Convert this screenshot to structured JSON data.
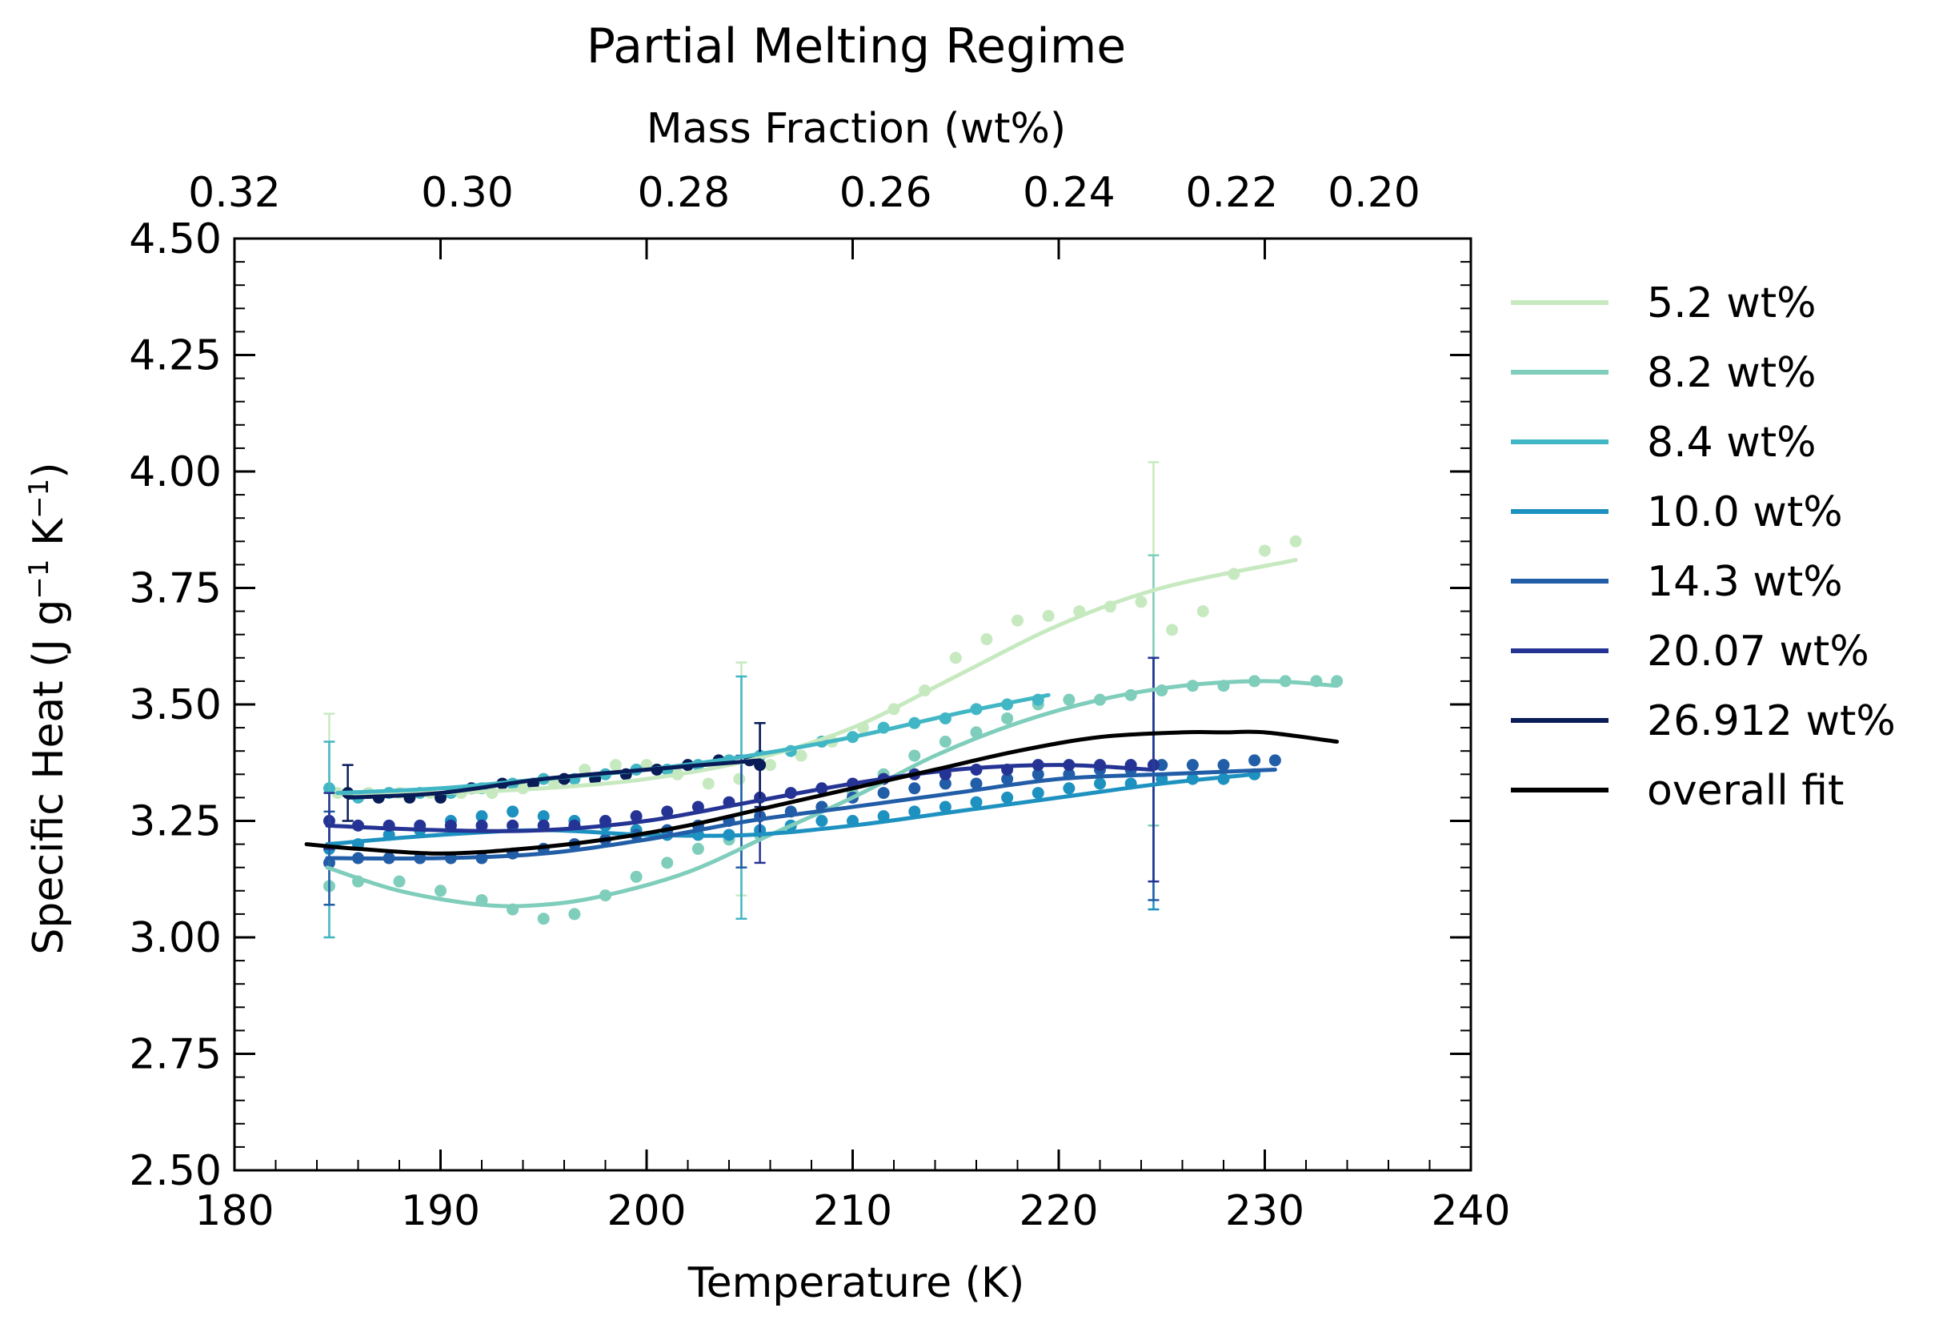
{
  "chart_data": {
    "type": "line",
    "title": "Partial Melting Regime",
    "xlabel": "Temperature (K)",
    "ylabel": "Specific Heat (J g",
    "ylabel_sup1": "−1",
    "ylabel_mid": " K",
    "ylabel_sup2": "−1",
    "ylabel_end": ")",
    "top_xlabel": "Mass Fraction (wt%)",
    "xlim": [
      180,
      240
    ],
    "ylim": [
      2.5,
      4.5
    ],
    "x_ticks": [
      180,
      190,
      200,
      210,
      220,
      230,
      240
    ],
    "y_ticks": [
      2.5,
      2.75,
      3.0,
      3.25,
      3.5,
      3.75,
      4.0,
      4.25,
      4.5
    ],
    "x_tick_labels": [
      "180",
      "190",
      "200",
      "210",
      "220",
      "230",
      "240"
    ],
    "y_tick_labels": [
      "2.50",
      "2.75",
      "3.00",
      "3.25",
      "3.50",
      "3.75",
      "4.00",
      "4.25",
      "4.50"
    ],
    "top_ticks": [
      {
        "label": "0.32",
        "at_temperature": 180
      },
      {
        "label": "0.30",
        "at_temperature": 191.3
      },
      {
        "label": "0.28",
        "at_temperature": 201.8
      },
      {
        "label": "0.26",
        "at_temperature": 211.6
      },
      {
        "label": "0.24",
        "at_temperature": 220.5
      },
      {
        "label": "0.22",
        "at_temperature": 228.4
      },
      {
        "label": "0.20",
        "at_temperature": 235.3
      }
    ],
    "grid": false,
    "legend_position": "outside-right",
    "series": [
      {
        "name": "5.2 wt%",
        "color": "#c7e9c0",
        "fit": {
          "x": [
            185,
            190,
            195,
            200,
            205,
            210,
            215,
            220,
            225,
            231.5
          ],
          "y": [
            3.31,
            3.31,
            3.32,
            3.34,
            3.38,
            3.45,
            3.56,
            3.67,
            3.75,
            3.81
          ]
        },
        "points": {
          "x": [
            185,
            186.5,
            188,
            189.5,
            191,
            192.5,
            194,
            195.5,
            197,
            198.5,
            200,
            201.5,
            203,
            204.5,
            206,
            207.5,
            209,
            210.5,
            212,
            213.5,
            215,
            216.5,
            218,
            219.5,
            221,
            222.5,
            224,
            225.5,
            227,
            228.5,
            230,
            231.5
          ],
          "y": [
            3.31,
            3.31,
            3.31,
            3.31,
            3.31,
            3.31,
            3.32,
            3.33,
            3.36,
            3.37,
            3.37,
            3.35,
            3.33,
            3.34,
            3.37,
            3.39,
            3.42,
            3.45,
            3.49,
            3.53,
            3.6,
            3.64,
            3.68,
            3.69,
            3.7,
            3.71,
            3.72,
            3.66,
            3.7,
            3.78,
            3.83,
            3.85
          ]
        },
        "errorbars": [
          {
            "x": 184.6,
            "y": 3.24,
            "err": 0.24
          },
          {
            "x": 204.6,
            "y": 3.34,
            "err": 0.25
          },
          {
            "x": 224.6,
            "y": 3.73,
            "err": 0.29
          }
        ]
      },
      {
        "name": "8.2 wt%",
        "color": "#7fcdbb",
        "fit": {
          "x": [
            184.5,
            188,
            192,
            195,
            198,
            202,
            206,
            210,
            214,
            218,
            222,
            226,
            230,
            233.5
          ],
          "y": [
            3.15,
            3.1,
            3.07,
            3.07,
            3.09,
            3.14,
            3.22,
            3.3,
            3.39,
            3.46,
            3.51,
            3.54,
            3.55,
            3.54
          ]
        },
        "points": {
          "x": [
            184.6,
            186,
            188,
            190,
            192,
            193.5,
            195,
            196.5,
            198,
            199.5,
            201,
            202.5,
            204,
            205.5,
            207,
            208.5,
            210,
            211.5,
            213,
            214.5,
            216,
            217.5,
            219,
            220.5,
            222,
            223.5,
            225,
            226.5,
            228,
            229.5,
            231,
            232.5,
            233.5
          ],
          "y": [
            3.11,
            3.12,
            3.12,
            3.1,
            3.08,
            3.06,
            3.04,
            3.05,
            3.09,
            3.13,
            3.16,
            3.19,
            3.21,
            3.22,
            3.24,
            3.28,
            3.31,
            3.35,
            3.39,
            3.42,
            3.44,
            3.47,
            3.5,
            3.51,
            3.51,
            3.52,
            3.53,
            3.54,
            3.54,
            3.55,
            3.55,
            3.55,
            3.55
          ]
        },
        "errorbars": [
          {
            "x": 224.6,
            "y": 3.53,
            "err": 0.29
          }
        ]
      },
      {
        "name": "8.4 wt%",
        "color": "#41b6c4",
        "fit": {
          "x": [
            185,
            190,
            195,
            200,
            205,
            210,
            215,
            219.5
          ],
          "y": [
            3.31,
            3.32,
            3.34,
            3.36,
            3.39,
            3.43,
            3.48,
            3.52
          ]
        },
        "points": {
          "x": [
            184.6,
            186,
            187.5,
            189,
            190.5,
            192,
            193.5,
            195,
            196.5,
            198,
            199.5,
            201,
            202.5,
            204,
            205.5,
            207,
            208.5,
            210,
            211.5,
            213,
            214.5,
            216,
            217.5,
            219
          ],
          "y": [
            3.32,
            3.3,
            3.31,
            3.31,
            3.31,
            3.32,
            3.33,
            3.34,
            3.34,
            3.35,
            3.36,
            3.36,
            3.37,
            3.38,
            3.39,
            3.4,
            3.42,
            3.43,
            3.45,
            3.46,
            3.47,
            3.49,
            3.5,
            3.51
          ]
        },
        "errorbars": [
          {
            "x": 184.6,
            "y": 3.21,
            "err": 0.21
          },
          {
            "x": 204.6,
            "y": 3.3,
            "err": 0.26
          }
        ]
      },
      {
        "name": "10.0 wt%",
        "color": "#1d91c0",
        "fit": {
          "x": [
            184.5,
            190,
            195,
            200,
            205,
            210,
            215,
            220,
            225,
            229.5
          ],
          "y": [
            3.2,
            3.22,
            3.23,
            3.22,
            3.22,
            3.24,
            3.27,
            3.3,
            3.33,
            3.35
          ]
        },
        "points": {
          "x": [
            184.6,
            186,
            187.5,
            189,
            190.5,
            192,
            193.5,
            195,
            196.5,
            198,
            199.5,
            201,
            202.5,
            204,
            205.5,
            207,
            208.5,
            210,
            211.5,
            213,
            214.5,
            216,
            217.5,
            219,
            220.5,
            222,
            223.5,
            225,
            226.5,
            228,
            229.5
          ],
          "y": [
            3.19,
            3.2,
            3.22,
            3.23,
            3.25,
            3.26,
            3.27,
            3.26,
            3.25,
            3.24,
            3.23,
            3.22,
            3.22,
            3.22,
            3.23,
            3.24,
            3.25,
            3.25,
            3.26,
            3.27,
            3.28,
            3.29,
            3.3,
            3.31,
            3.32,
            3.33,
            3.33,
            3.34,
            3.34,
            3.34,
            3.35
          ]
        },
        "errorbars": [
          {
            "x": 224.6,
            "y": 3.33,
            "err": 0.27
          }
        ]
      },
      {
        "name": "14.3 wt%",
        "color": "#225ea8",
        "fit": {
          "x": [
            184.5,
            190,
            195,
            200,
            205,
            210,
            215,
            220,
            225,
            230.5
          ],
          "y": [
            3.17,
            3.17,
            3.18,
            3.21,
            3.25,
            3.28,
            3.31,
            3.34,
            3.35,
            3.36
          ]
        },
        "points": {
          "x": [
            184.6,
            186,
            187.5,
            189,
            190.5,
            192,
            193.5,
            195,
            196.5,
            198,
            199.5,
            201,
            202.5,
            204,
            205.5,
            207,
            208.5,
            210,
            211.5,
            213,
            214.5,
            216,
            217.5,
            219,
            220.5,
            222,
            223.5,
            225,
            226.5,
            228,
            229.5,
            230.5
          ],
          "y": [
            3.16,
            3.17,
            3.17,
            3.17,
            3.17,
            3.17,
            3.18,
            3.19,
            3.2,
            3.21,
            3.22,
            3.23,
            3.24,
            3.25,
            3.26,
            3.27,
            3.28,
            3.3,
            3.31,
            3.32,
            3.33,
            3.33,
            3.34,
            3.35,
            3.35,
            3.36,
            3.36,
            3.37,
            3.37,
            3.37,
            3.38,
            3.38
          ]
        },
        "errorbars": [
          {
            "x": 184.6,
            "y": 3.17,
            "err": 0.1
          },
          {
            "x": 204.6,
            "y": 3.27,
            "err": 0.12
          },
          {
            "x": 224.6,
            "y": 3.34,
            "err": 0.26
          }
        ]
      },
      {
        "name": "20.07 wt%",
        "color": "#253494",
        "fit": {
          "x": [
            184.5,
            190,
            195,
            200,
            205,
            210,
            215,
            220,
            224.5
          ],
          "y": [
            3.24,
            3.23,
            3.23,
            3.25,
            3.29,
            3.33,
            3.36,
            3.37,
            3.36
          ]
        },
        "points": {
          "x": [
            184.6,
            186,
            187.5,
            189,
            190.5,
            192,
            193.5,
            195,
            196.5,
            198,
            199.5,
            201,
            202.5,
            204,
            205.5,
            207,
            208.5,
            210,
            211.5,
            213,
            214.5,
            216,
            217.5,
            219,
            220.5,
            222,
            223.5,
            224.6
          ],
          "y": [
            3.25,
            3.24,
            3.24,
            3.24,
            3.24,
            3.24,
            3.24,
            3.24,
            3.24,
            3.25,
            3.26,
            3.27,
            3.28,
            3.29,
            3.3,
            3.31,
            3.32,
            3.33,
            3.34,
            3.35,
            3.35,
            3.36,
            3.36,
            3.37,
            3.37,
            3.37,
            3.37,
            3.37
          ]
        },
        "errorbars": [
          {
            "x": 184.6,
            "y": 3.25,
            "err": 0.06
          },
          {
            "x": 205.5,
            "y": 3.31,
            "err": 0.15
          },
          {
            "x": 224.6,
            "y": 3.36,
            "err": 0.24
          }
        ]
      },
      {
        "name": "26.912 wt%",
        "color": "#081d58",
        "fit": {
          "x": [
            185.5,
            190,
            195,
            200,
            205.5
          ],
          "y": [
            3.3,
            3.31,
            3.34,
            3.36,
            3.38
          ]
        },
        "points": {
          "x": [
            185.5,
            187,
            188.5,
            190,
            191.5,
            193,
            194.5,
            196,
            197.5,
            199,
            200.5,
            202,
            203.5,
            205,
            205.5
          ],
          "y": [
            3.31,
            3.3,
            3.3,
            3.3,
            3.32,
            3.33,
            3.33,
            3.34,
            3.34,
            3.35,
            3.36,
            3.37,
            3.38,
            3.38,
            3.37
          ]
        },
        "errorbars": [
          {
            "x": 185.5,
            "y": 3.31,
            "err": 0.06
          },
          {
            "x": 205.5,
            "y": 3.37,
            "err": 0.09
          }
        ]
      },
      {
        "name": "overall fit",
        "color": "#000000",
        "fit": {
          "x": [
            183.5,
            186,
            190,
            194,
            198,
            202,
            206,
            210,
            214,
            218,
            222,
            226,
            228,
            230,
            233.5
          ],
          "y": [
            3.2,
            3.19,
            3.18,
            3.19,
            3.21,
            3.24,
            3.28,
            3.32,
            3.36,
            3.4,
            3.43,
            3.44,
            3.44,
            3.44,
            3.42
          ]
        },
        "points": {
          "x": [],
          "y": []
        },
        "errorbars": []
      }
    ]
  }
}
